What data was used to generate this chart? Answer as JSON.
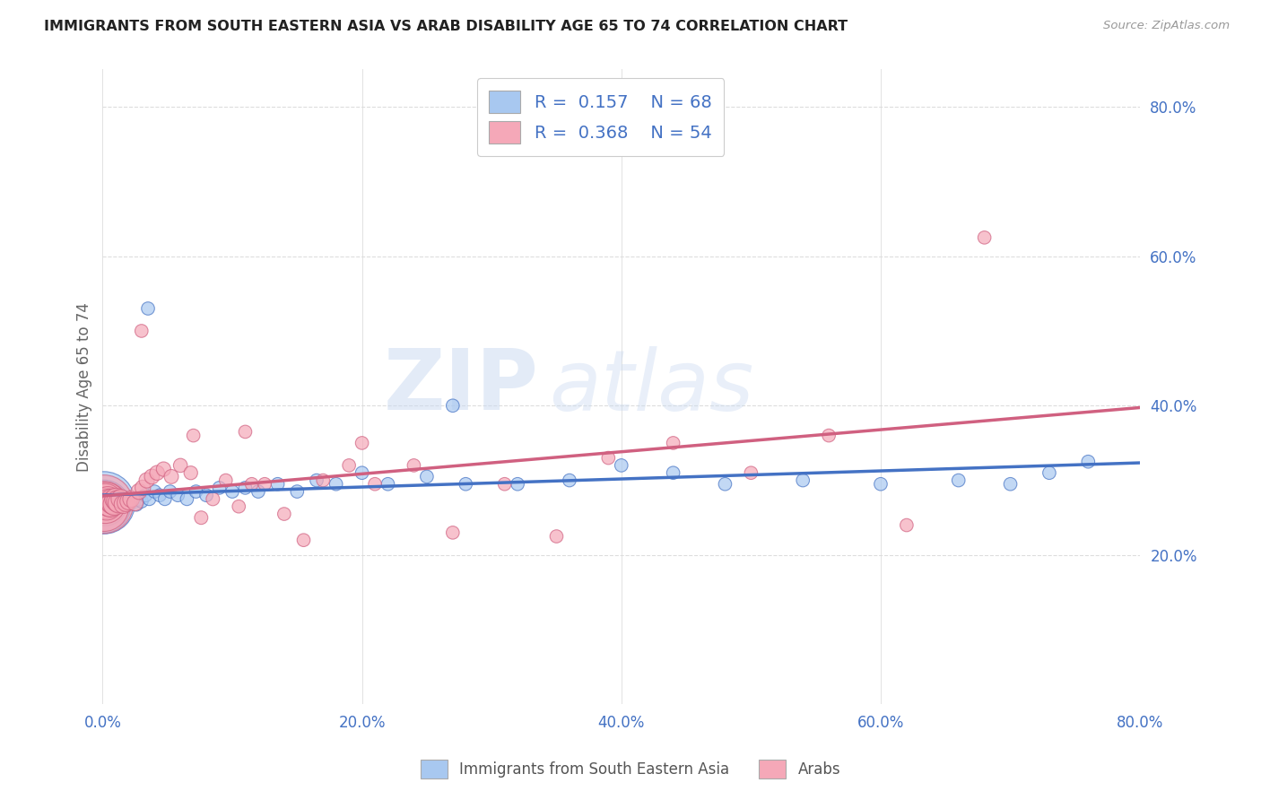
{
  "title": "IMMIGRANTS FROM SOUTH EASTERN ASIA VS ARAB DISABILITY AGE 65 TO 74 CORRELATION CHART",
  "source": "Source: ZipAtlas.com",
  "ylabel": "Disability Age 65 to 74",
  "xlim": [
    0.0,
    0.8
  ],
  "ylim": [
    0.0,
    0.85
  ],
  "x_ticks": [
    0.0,
    0.2,
    0.4,
    0.6,
    0.8
  ],
  "x_tick_labels": [
    "0.0%",
    "20.0%",
    "40.0%",
    "60.0%",
    "80.0%"
  ],
  "y_ticks_right": [
    0.2,
    0.4,
    0.6,
    0.8
  ],
  "y_tick_labels_right": [
    "20.0%",
    "40.0%",
    "60.0%",
    "80.0%"
  ],
  "legend_label1": "Immigrants from South Eastern Asia",
  "legend_label2": "Arabs",
  "R1": "0.157",
  "N1": "68",
  "R2": "0.368",
  "N2": "54",
  "color_blue": "#A8C8F0",
  "color_pink": "#F5A8B8",
  "color_blue_dark": "#4472C4",
  "color_pink_dark": "#D06080",
  "watermark_zip": "ZIP",
  "watermark_atlas": "atlas",
  "blue_x": [
    0.001,
    0.001,
    0.002,
    0.002,
    0.003,
    0.003,
    0.004,
    0.004,
    0.005,
    0.005,
    0.006,
    0.006,
    0.007,
    0.007,
    0.008,
    0.009,
    0.01,
    0.01,
    0.011,
    0.012,
    0.013,
    0.014,
    0.015,
    0.016,
    0.017,
    0.018,
    0.019,
    0.02,
    0.022,
    0.024,
    0.026,
    0.028,
    0.03,
    0.033,
    0.036,
    0.04,
    0.044,
    0.048,
    0.052,
    0.058,
    0.065,
    0.072,
    0.08,
    0.09,
    0.1,
    0.11,
    0.12,
    0.135,
    0.15,
    0.165,
    0.18,
    0.2,
    0.22,
    0.25,
    0.28,
    0.32,
    0.36,
    0.4,
    0.44,
    0.48,
    0.54,
    0.6,
    0.66,
    0.7,
    0.73,
    0.76,
    0.035,
    0.27
  ],
  "blue_y": [
    0.27,
    0.265,
    0.268,
    0.272,
    0.27,
    0.275,
    0.268,
    0.272,
    0.27,
    0.275,
    0.272,
    0.268,
    0.275,
    0.27,
    0.272,
    0.268,
    0.272,
    0.275,
    0.27,
    0.268,
    0.272,
    0.275,
    0.272,
    0.268,
    0.275,
    0.272,
    0.27,
    0.268,
    0.275,
    0.272,
    0.268,
    0.275,
    0.272,
    0.28,
    0.275,
    0.285,
    0.28,
    0.275,
    0.285,
    0.28,
    0.275,
    0.285,
    0.28,
    0.29,
    0.285,
    0.29,
    0.285,
    0.295,
    0.285,
    0.3,
    0.295,
    0.31,
    0.295,
    0.305,
    0.295,
    0.295,
    0.3,
    0.32,
    0.31,
    0.295,
    0.3,
    0.295,
    0.3,
    0.295,
    0.31,
    0.325,
    0.53,
    0.4
  ],
  "blue_sizes": [
    2500,
    1800,
    1200,
    900,
    700,
    600,
    500,
    450,
    400,
    380,
    350,
    320,
    300,
    280,
    260,
    240,
    220,
    210,
    200,
    190,
    180,
    170,
    165,
    160,
    155,
    150,
    145,
    140,
    135,
    130,
    125,
    120,
    115,
    115,
    110,
    110,
    110,
    110,
    110,
    110,
    110,
    110,
    110,
    110,
    110,
    110,
    110,
    110,
    110,
    110,
    110,
    110,
    110,
    110,
    110,
    110,
    110,
    110,
    110,
    110,
    110,
    110,
    110,
    110,
    110,
    110,
    110,
    110
  ],
  "pink_x": [
    0.001,
    0.001,
    0.002,
    0.002,
    0.003,
    0.004,
    0.005,
    0.006,
    0.007,
    0.008,
    0.009,
    0.01,
    0.011,
    0.012,
    0.014,
    0.016,
    0.018,
    0.02,
    0.022,
    0.025,
    0.028,
    0.031,
    0.034,
    0.038,
    0.042,
    0.047,
    0.053,
    0.06,
    0.068,
    0.076,
    0.085,
    0.095,
    0.105,
    0.115,
    0.125,
    0.14,
    0.155,
    0.17,
    0.19,
    0.21,
    0.24,
    0.27,
    0.31,
    0.35,
    0.39,
    0.44,
    0.5,
    0.56,
    0.62,
    0.68,
    0.03,
    0.07,
    0.11,
    0.2
  ],
  "pink_y": [
    0.268,
    0.265,
    0.27,
    0.272,
    0.268,
    0.272,
    0.27,
    0.268,
    0.272,
    0.27,
    0.268,
    0.275,
    0.272,
    0.27,
    0.275,
    0.268,
    0.27,
    0.272,
    0.275,
    0.27,
    0.285,
    0.29,
    0.3,
    0.305,
    0.31,
    0.315,
    0.305,
    0.32,
    0.31,
    0.25,
    0.275,
    0.3,
    0.265,
    0.295,
    0.295,
    0.255,
    0.22,
    0.3,
    0.32,
    0.295,
    0.32,
    0.23,
    0.295,
    0.225,
    0.33,
    0.35,
    0.31,
    0.36,
    0.24,
    0.625,
    0.5,
    0.36,
    0.365,
    0.35
  ],
  "pink_sizes": [
    2200,
    1600,
    1100,
    800,
    650,
    550,
    480,
    420,
    380,
    350,
    320,
    300,
    280,
    260,
    240,
    220,
    200,
    190,
    180,
    170,
    160,
    155,
    150,
    145,
    140,
    135,
    130,
    125,
    120,
    115,
    115,
    110,
    110,
    110,
    110,
    110,
    110,
    110,
    110,
    110,
    110,
    110,
    110,
    110,
    110,
    110,
    110,
    110,
    110,
    110,
    110,
    110,
    110,
    110
  ],
  "grid_color": "#DDDDDD",
  "bg_color": "#FFFFFF"
}
